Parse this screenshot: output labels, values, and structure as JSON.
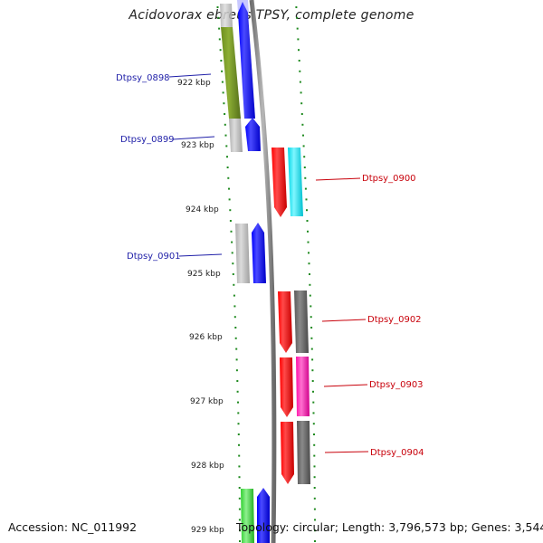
{
  "title": "Acidovorax ebreus TPSY, complete genome",
  "footer": {
    "accession": "Accession: NC_011992",
    "summary": "Topology: circular; Length: 3,796,573 bp; Genes: 3,544"
  },
  "kbp_labels": [
    "922 kbp",
    "923 kbp",
    "924 kbp",
    "925 kbp",
    "926 kbp",
    "927 kbp",
    "928 kbp",
    "929 kbp"
  ],
  "genes": [
    {
      "name": "Dtpsy_0898",
      "strand": "-",
      "color": "#1f1fa8"
    },
    {
      "name": "Dtpsy_0899",
      "strand": "-",
      "color": "#1f1fa8"
    },
    {
      "name": "Dtpsy_0900",
      "strand": "+",
      "color": "#c8000a"
    },
    {
      "name": "Dtpsy_0901",
      "strand": "-",
      "color": "#1f1fa8"
    },
    {
      "name": "Dtpsy_0902",
      "strand": "+",
      "color": "#c8000a"
    },
    {
      "name": "Dtpsy_0903",
      "strand": "+",
      "color": "#c8000a"
    },
    {
      "name": "Dtpsy_0904",
      "strand": "+",
      "color": "#c8000a"
    }
  ],
  "colors": {
    "minus_strand_label": "#1f1fa8",
    "plus_strand_label": "#c8000a",
    "backbone": "#888888",
    "tick": "#1f8a1f",
    "gene_blue": "#0000ff",
    "gene_red": "#ff0000",
    "gene_olive": "#6e8f1e",
    "gene_grey": "#b8b8b8",
    "gene_darkgrey": "#666666",
    "gene_cyan": "#00e5f0",
    "gene_magenta": "#ff20b0",
    "gene_green": "#3fd83f"
  }
}
